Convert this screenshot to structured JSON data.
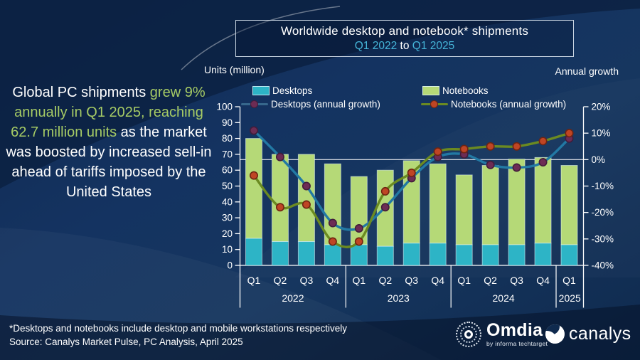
{
  "title": {
    "line1": "Worldwide desktop and notebook* shipments",
    "range_start": "Q1 2022",
    "range_sep": " to ",
    "range_end": "Q1 2025"
  },
  "axis_captions": {
    "left": "Units (million)",
    "right": "Annual growth"
  },
  "legend": {
    "desktops": "Desktops",
    "notebooks": "Notebooks",
    "desktops_growth": "Desktops (annual growth)",
    "notebooks_growth": "Notebooks (annual growth)"
  },
  "message": {
    "parts": [
      {
        "text": "Global PC shipments ",
        "highlight": false
      },
      {
        "text": "grew 9% annually in Q1 2025, reaching 62.7 million units",
        "highlight": true
      },
      {
        "text": " as the market was boosted by increased sell-in ahead of tariffs imposed by the United States",
        "highlight": false
      }
    ]
  },
  "footer": {
    "footnote": "*Desktops and notebooks include desktop and mobile workstations respectively",
    "source": "Source: Canalys Market Pulse, PC Analysis, April 2025"
  },
  "logos": {
    "omdia": "Omdia",
    "omdia_tagline": "by informa techtarget",
    "canalys": "canalys"
  },
  "colors": {
    "background": "#14335c",
    "accent_teal": "#45b5d9",
    "highlight_green": "#a6cb65",
    "bar_desktops": "#2db4c6",
    "bar_notebooks": "#b5d977",
    "bar_stroke": "rgba(230,248,252,0.55)",
    "line_desktops": "#2279a4",
    "line_notebooks": "#6b8a21",
    "dot_desktops": "#6d2c54",
    "dot_desktops_stroke": "#421d3a",
    "dot_notebooks": "#bf4524",
    "dot_notebooks_stroke": "#6f2412",
    "axis": "#ffffff"
  },
  "chart_data": {
    "type": "bar",
    "subtype": "stacked-bars-with-growth-lines",
    "title": "Worldwide desktop and notebook* shipments Q1 2022 to Q1 2025",
    "ylabel": "Units (million)",
    "y2label": "Annual growth",
    "ylim": [
      0,
      100
    ],
    "y2lim": [
      -40,
      20
    ],
    "left_axis": {
      "min": 0,
      "max": 100,
      "step": 10
    },
    "right_axis": {
      "min": -40,
      "max": 20,
      "step": 10,
      "suffix": "%"
    },
    "grid": "zero-growth-line-only",
    "legend_position": "top",
    "categories": [
      "Q1",
      "Q2",
      "Q3",
      "Q4",
      "Q1",
      "Q2",
      "Q3",
      "Q4",
      "Q1",
      "Q2",
      "Q3",
      "Q4",
      "Q1"
    ],
    "year_groups": [
      {
        "label": "2022",
        "span": 4
      },
      {
        "label": "2023",
        "span": 4
      },
      {
        "label": "2024",
        "span": 4
      },
      {
        "label": "2025",
        "span": 1
      }
    ],
    "bar_series": [
      {
        "name": "Desktops",
        "values": [
          17,
          15,
          15,
          13,
          13,
          12,
          14,
          14,
          13,
          13,
          13,
          14,
          13
        ]
      },
      {
        "name": "Notebooks",
        "values": [
          63,
          55,
          55,
          51,
          43,
          48,
          52,
          50,
          44,
          50,
          54,
          54,
          50
        ]
      }
    ],
    "line_series": [
      {
        "name": "Desktops (annual growth)",
        "unit": "%",
        "values": [
          11,
          1,
          -10,
          -24,
          -26,
          -18,
          -7,
          1,
          2,
          -2,
          -3,
          -1,
          8
        ]
      },
      {
        "name": "Notebooks (annual growth)",
        "unit": "%",
        "values": [
          -6,
          -18,
          -17,
          -31,
          -31,
          -12,
          -5,
          3,
          4,
          5,
          5,
          7,
          10
        ]
      }
    ]
  }
}
